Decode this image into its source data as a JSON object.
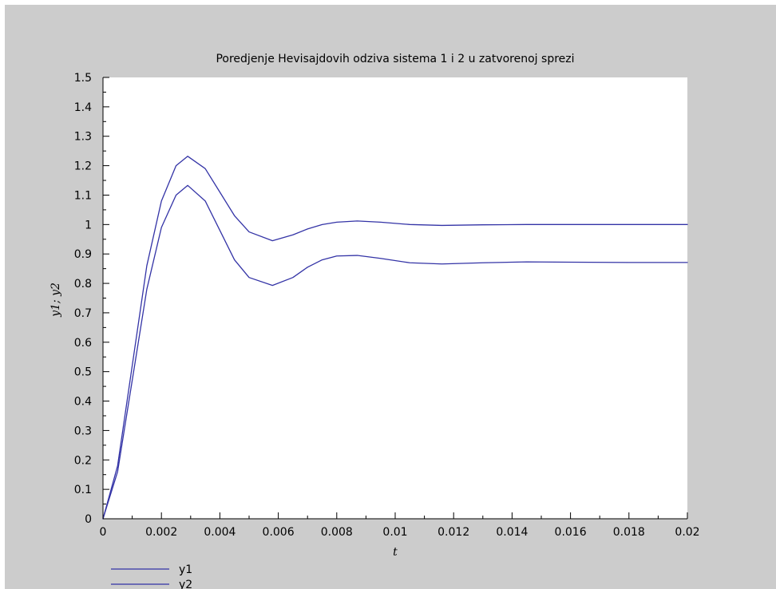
{
  "chart_data": {
    "type": "line",
    "title": "Poredjenje Hevisajdovih odziva sistema 1 i 2 u zatvorenoj sprezi",
    "xlabel": "t",
    "ylabel": "y1; y2",
    "xlim": [
      0,
      0.02
    ],
    "ylim": [
      0,
      1.5
    ],
    "xticks": [
      "0",
      "0.002",
      "0.004",
      "0.006",
      "0.008",
      "0.01",
      "0.012",
      "0.014",
      "0.016",
      "0.018",
      "0.02"
    ],
    "yticks": [
      "0",
      "0.1",
      "0.2",
      "0.3",
      "0.4",
      "0.5",
      "0.6",
      "0.7",
      "0.8",
      "0.9",
      "1",
      "1.1",
      "1.2",
      "1.3",
      "1.4",
      "1.5"
    ],
    "grid": false,
    "legend_position": "bottom-left",
    "series": [
      {
        "name": "y1",
        "color": "#3333a6",
        "x": [
          0,
          0.0005,
          0.001,
          0.0015,
          0.002,
          0.0025,
          0.0029,
          0.0035,
          0.004,
          0.0045,
          0.005,
          0.0058,
          0.0065,
          0.007,
          0.0075,
          0.008,
          0.0087,
          0.0095,
          0.0105,
          0.0116,
          0.013,
          0.0145,
          0.016,
          0.018,
          0.02
        ],
        "values": [
          0,
          0.18,
          0.52,
          0.86,
          1.08,
          1.2,
          1.232,
          1.19,
          1.11,
          1.03,
          0.975,
          0.945,
          0.965,
          0.985,
          1.0,
          1.008,
          1.012,
          1.008,
          1.0,
          0.997,
          0.999,
          1.0,
          1.0,
          1.0,
          1.0
        ]
      },
      {
        "name": "y2",
        "color": "#3333a6",
        "x": [
          0,
          0.0005,
          0.001,
          0.0015,
          0.002,
          0.0025,
          0.0029,
          0.0035,
          0.004,
          0.0045,
          0.005,
          0.0058,
          0.0065,
          0.007,
          0.0075,
          0.008,
          0.0087,
          0.0095,
          0.0105,
          0.0116,
          0.013,
          0.0145,
          0.016,
          0.018,
          0.02
        ],
        "values": [
          0,
          0.16,
          0.47,
          0.78,
          0.99,
          1.1,
          1.133,
          1.08,
          0.98,
          0.88,
          0.82,
          0.793,
          0.82,
          0.855,
          0.88,
          0.893,
          0.895,
          0.885,
          0.87,
          0.866,
          0.87,
          0.873,
          0.872,
          0.871,
          0.871
        ]
      }
    ]
  }
}
